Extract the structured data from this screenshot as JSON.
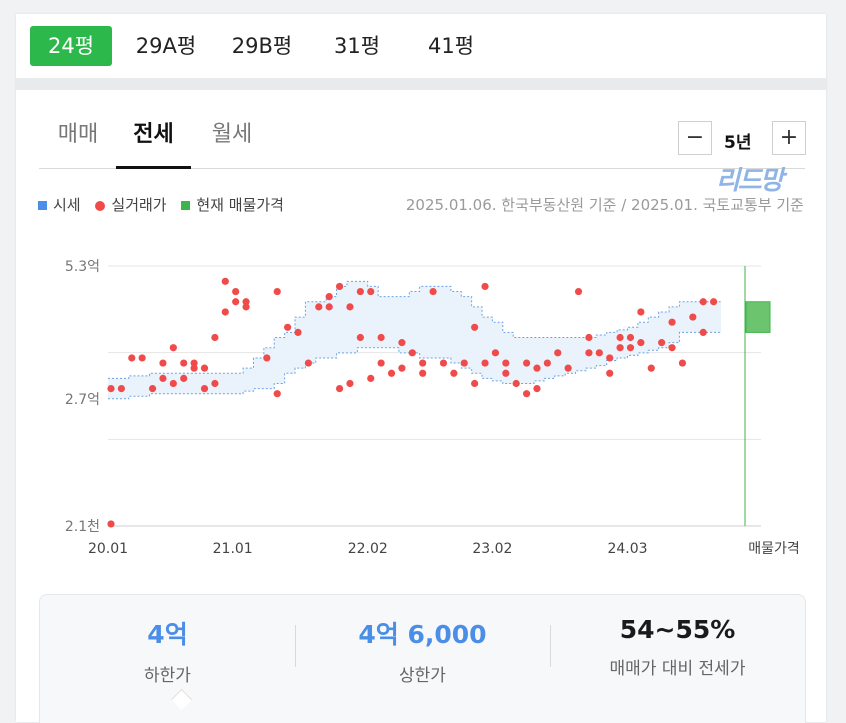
{
  "size_tabs": [
    "24평",
    "29A평",
    "29B평",
    "31평",
    "41평"
  ],
  "deal_tabs": [
    "매매",
    "전세",
    "월세"
  ],
  "period": {
    "minus": "−",
    "value": "5년",
    "plus": "+"
  },
  "watermark": "리드망",
  "legend": {
    "market": "시세",
    "actual": "실거래가",
    "listing": "현재 매물가격"
  },
  "source": "2025.01.06. 한국부동산원 기준 / 2025.01. 국토교통부 기준",
  "colors": {
    "accent_green": "#2db84b",
    "market_blue": "#4a8ee8",
    "actual_red": "#f04b4b",
    "listing_green": "#3cb54a"
  },
  "chart_data": {
    "type": "scatter",
    "y_tick_labels": [
      "5.3억",
      "2.7억",
      "2.1천"
    ],
    "x_tick_labels": [
      "20.01",
      "21.01",
      "22.02",
      "23.02",
      "24.03",
      "매물가격"
    ],
    "x_range": [
      0,
      59
    ],
    "y_range": [
      0.21,
      5.3
    ],
    "grid": true,
    "market_band": {
      "x": [
        0,
        1,
        2,
        3,
        4,
        5,
        6,
        7,
        8,
        9,
        10,
        11,
        12,
        13,
        14,
        15,
        16,
        17,
        18,
        19,
        20,
        21,
        22,
        23,
        24,
        25,
        26,
        27,
        28,
        29,
        30,
        31,
        32,
        33,
        34,
        35,
        36,
        37,
        38,
        39,
        40,
        41,
        42,
        43,
        44,
        45,
        46,
        47,
        48,
        49,
        50,
        51,
        52,
        53,
        54,
        55,
        56,
        57,
        58,
        59
      ],
      "lower": [
        2.7,
        2.7,
        2.75,
        2.75,
        2.8,
        2.8,
        2.8,
        2.8,
        2.8,
        2.8,
        2.8,
        2.8,
        2.8,
        2.85,
        2.9,
        2.9,
        3.0,
        3.2,
        3.3,
        3.4,
        3.5,
        3.5,
        3.6,
        3.6,
        3.7,
        3.7,
        3.7,
        3.7,
        3.6,
        3.6,
        3.5,
        3.5,
        3.5,
        3.4,
        3.3,
        3.2,
        3.1,
        3.05,
        3.0,
        3.0,
        3.0,
        3.05,
        3.1,
        3.15,
        3.2,
        3.25,
        3.3,
        3.35,
        3.45,
        3.5,
        3.55,
        3.6,
        3.65,
        3.7,
        3.8,
        4.0,
        4.0,
        4.0,
        4.0,
        4.0
      ],
      "upper": [
        3.1,
        3.1,
        3.15,
        3.15,
        3.2,
        3.2,
        3.2,
        3.2,
        3.2,
        3.2,
        3.2,
        3.2,
        3.2,
        3.3,
        3.5,
        3.7,
        3.9,
        4.0,
        4.3,
        4.6,
        4.6,
        4.7,
        4.9,
        5.0,
        5.0,
        4.9,
        4.7,
        4.7,
        4.7,
        4.8,
        4.9,
        4.9,
        4.9,
        4.8,
        4.7,
        4.5,
        4.3,
        4.2,
        4.0,
        3.9,
        3.9,
        3.9,
        3.9,
        3.9,
        3.9,
        3.9,
        3.9,
        3.95,
        4.0,
        4.05,
        4.1,
        4.2,
        4.3,
        4.4,
        4.5,
        4.6,
        4.6,
        4.6,
        4.6,
        4.6
      ]
    },
    "actual_trades": {
      "x": [
        0,
        1,
        2,
        3,
        4,
        5,
        5,
        6,
        6,
        7,
        7,
        8,
        8,
        9,
        9,
        10,
        10,
        11,
        11,
        12,
        12,
        13,
        13,
        15,
        16,
        16,
        17,
        18,
        19,
        20,
        21,
        21,
        22,
        22,
        23,
        23,
        24,
        24,
        25,
        25,
        26,
        26,
        27,
        28,
        28,
        29,
        30,
        30,
        31,
        32,
        33,
        34,
        35,
        35,
        36,
        36,
        37,
        38,
        38,
        39,
        40,
        40,
        41,
        41,
        42,
        43,
        44,
        45,
        46,
        46,
        47,
        48,
        48,
        49,
        49,
        50,
        50,
        51,
        51,
        52,
        53,
        54,
        54,
        55,
        56,
        57,
        57,
        58
      ],
      "y": [
        2.9,
        2.9,
        3.5,
        3.5,
        2.9,
        3.4,
        3.1,
        3.7,
        3.0,
        3.4,
        3.1,
        3.3,
        3.4,
        2.9,
        3.3,
        3.0,
        3.9,
        5.0,
        4.4,
        4.8,
        4.6,
        4.5,
        4.6,
        3.5,
        2.8,
        4.8,
        4.1,
        4.0,
        3.4,
        4.5,
        4.5,
        4.7,
        4.9,
        2.9,
        3.0,
        4.5,
        3.9,
        4.8,
        3.1,
        4.8,
        3.9,
        3.4,
        3.2,
        3.3,
        3.8,
        3.6,
        3.2,
        3.4,
        4.8,
        3.4,
        3.2,
        3.4,
        4.1,
        3.0,
        3.4,
        4.9,
        3.6,
        3.2,
        3.4,
        3.0,
        3.4,
        2.8,
        3.3,
        2.9,
        3.4,
        3.6,
        3.3,
        4.8,
        3.6,
        3.9,
        3.6,
        3.2,
        3.5,
        3.7,
        3.9,
        3.7,
        3.9,
        4.4,
        3.8,
        3.3,
        3.8,
        4.2,
        3.7,
        3.4,
        4.3,
        4.6,
        4.0,
        4.6
      ],
      "outliers_x": [
        0
      ],
      "outliers_y": [
        0.25
      ]
    },
    "listing_price": {
      "low": 4.0,
      "high": 4.6
    }
  },
  "summary": [
    {
      "value": "4억",
      "label": "하한가"
    },
    {
      "value": "4억 6,000",
      "label": "상한가"
    },
    {
      "value": "54~55%",
      "label": "매매가 대비 전세가"
    }
  ]
}
